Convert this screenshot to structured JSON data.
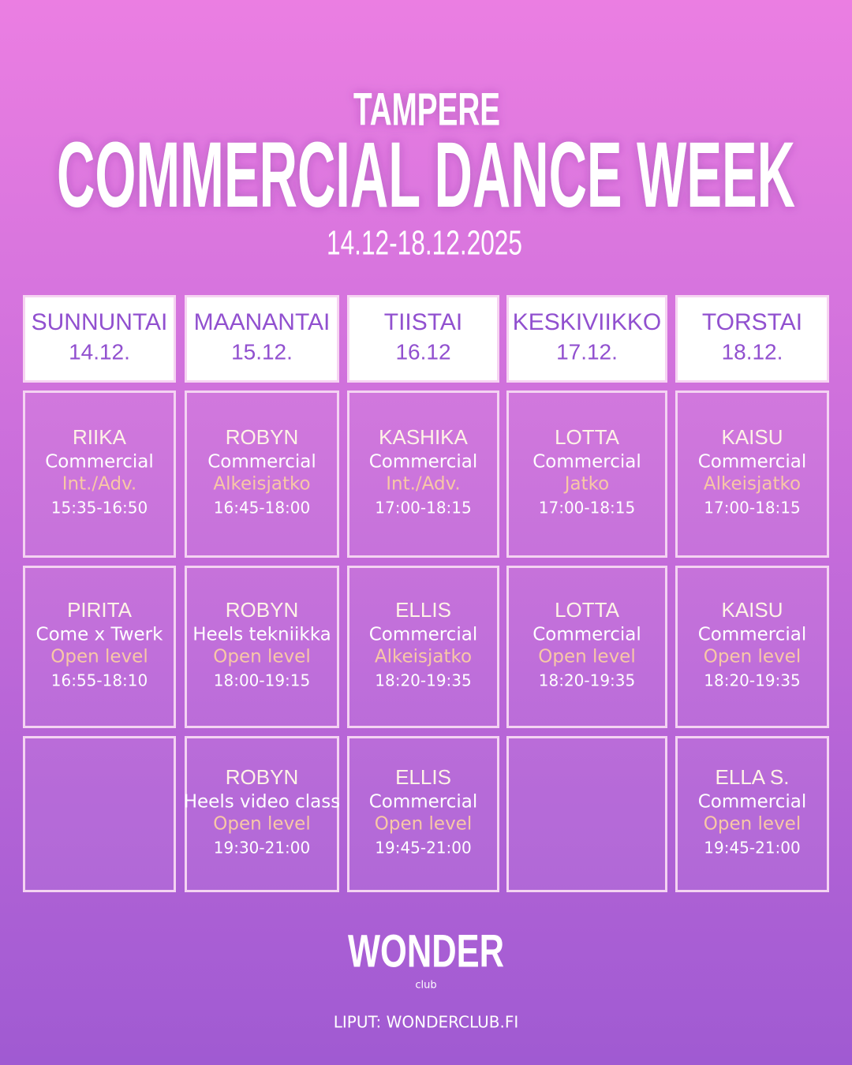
{
  "header": {
    "location": "TAMPERE",
    "title": "COMMERCIAL DANCE WEEK",
    "dates": "14.12-18.12.2025"
  },
  "days": [
    {
      "name": "SUNNUNTAI",
      "date": "14.12.",
      "slots": [
        {
          "teacher": "RIIKA",
          "style": "Commercial",
          "level": "Int./Adv.",
          "time": "15:35-16:50"
        },
        {
          "teacher": "PIRITA",
          "style": "Come x Twerk",
          "level": "Open level",
          "time": "16:55-18:10"
        },
        null
      ]
    },
    {
      "name": "MAANANTAI",
      "date": "15.12.",
      "slots": [
        {
          "teacher": "ROBYN",
          "style": "Commercial",
          "level": "Alkeisjatko",
          "time": "16:45-18:00"
        },
        {
          "teacher": "ROBYN",
          "style": "Heels tekniikka",
          "level": "Open level",
          "time": "18:00-19:15"
        },
        {
          "teacher": "ROBYN",
          "style": "Heels video class",
          "level": "Open level",
          "time": "19:30-21:00"
        }
      ]
    },
    {
      "name": "TIISTAI",
      "date": "16.12",
      "slots": [
        {
          "teacher": "KASHIKA",
          "style": "Commercial",
          "level": "Int./Adv.",
          "time": "17:00-18:15"
        },
        {
          "teacher": "ELLIS",
          "style": "Commercial",
          "level": "Alkeisjatko",
          "time": "18:20-19:35"
        },
        {
          "teacher": "ELLIS",
          "style": "Commercial",
          "level": "Open level",
          "time": "19:45-21:00"
        }
      ]
    },
    {
      "name": "KESKIVIIKKO",
      "date": "17.12.",
      "slots": [
        {
          "teacher": "LOTTA",
          "style": "Commercial",
          "level": "Jatko",
          "time": "17:00-18:15"
        },
        {
          "teacher": "LOTTA",
          "style": "Commercial",
          "level": "Open level",
          "time": "18:20-19:35"
        },
        null
      ]
    },
    {
      "name": "TORSTAI",
      "date": "18.12.",
      "slots": [
        {
          "teacher": "KAISU",
          "style": "Commercial",
          "level": "Alkeisjatko",
          "time": "17:00-18:15"
        },
        {
          "teacher": "KAISU",
          "style": "Commercial",
          "level": "Open level",
          "time": "18:20-19:35"
        },
        {
          "teacher": "ELLA S.",
          "style": "Commercial",
          "level": "Open level",
          "time": "19:45-21:00"
        }
      ]
    }
  ],
  "footer": {
    "logo": "WONDER",
    "logo_sub": "club",
    "link": "LIPUT: WONDERCLUB.FI"
  }
}
